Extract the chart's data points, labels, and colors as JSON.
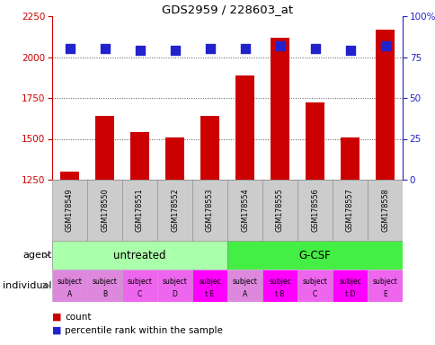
{
  "title": "GDS2959 / 228603_at",
  "samples": [
    "GSM178549",
    "GSM178550",
    "GSM178551",
    "GSM178552",
    "GSM178553",
    "GSM178554",
    "GSM178555",
    "GSM178556",
    "GSM178557",
    "GSM178558"
  ],
  "counts": [
    1300,
    1640,
    1540,
    1510,
    1640,
    1890,
    2120,
    1720,
    1510,
    2170
  ],
  "percentile_ranks": [
    80,
    80,
    79,
    79,
    80,
    80,
    82,
    80,
    79,
    82
  ],
  "ylim_left": [
    1250,
    2250
  ],
  "ylim_right": [
    0,
    100
  ],
  "yticks_left": [
    1250,
    1500,
    1750,
    2000,
    2250
  ],
  "yticks_right": [
    0,
    25,
    50,
    75,
    100
  ],
  "ytick_right_labels": [
    "0",
    "25",
    "50",
    "75",
    "100%"
  ],
  "bar_color": "#cc0000",
  "dot_color": "#2222cc",
  "agent_groups": [
    {
      "label": "untreated",
      "start": 0,
      "end": 5,
      "color": "#aaffaa"
    },
    {
      "label": "G-CSF",
      "start": 5,
      "end": 10,
      "color": "#44ee44"
    }
  ],
  "individuals": [
    [
      "subject",
      "A"
    ],
    [
      "subject",
      "B"
    ],
    [
      "subject",
      "C"
    ],
    [
      "subject",
      "D"
    ],
    [
      "subjec",
      "t E"
    ],
    [
      "subject",
      "A"
    ],
    [
      "subjec",
      "t B"
    ],
    [
      "subject",
      "C"
    ],
    [
      "subjec",
      "t D"
    ],
    [
      "subject",
      "E"
    ]
  ],
  "individual_colors": [
    "#dd88dd",
    "#dd88dd",
    "#ee66ee",
    "#ee66ee",
    "#ff00ff",
    "#dd88dd",
    "#ff00ff",
    "#ee66ee",
    "#ff00ff",
    "#ee66ee"
  ],
  "indiv_highlight": [
    false,
    false,
    false,
    false,
    true,
    false,
    true,
    false,
    true,
    false
  ],
  "xlabel_color": "#cc0000",
  "ylabel_right_color": "#2222cc",
  "grid_color": "#555555",
  "bg_color": "#ffffff",
  "bar_width": 0.55,
  "dot_size": 55,
  "sample_box_color": "#cccccc",
  "sample_box_edge": "#888888",
  "agent_box_edge": "#888888"
}
